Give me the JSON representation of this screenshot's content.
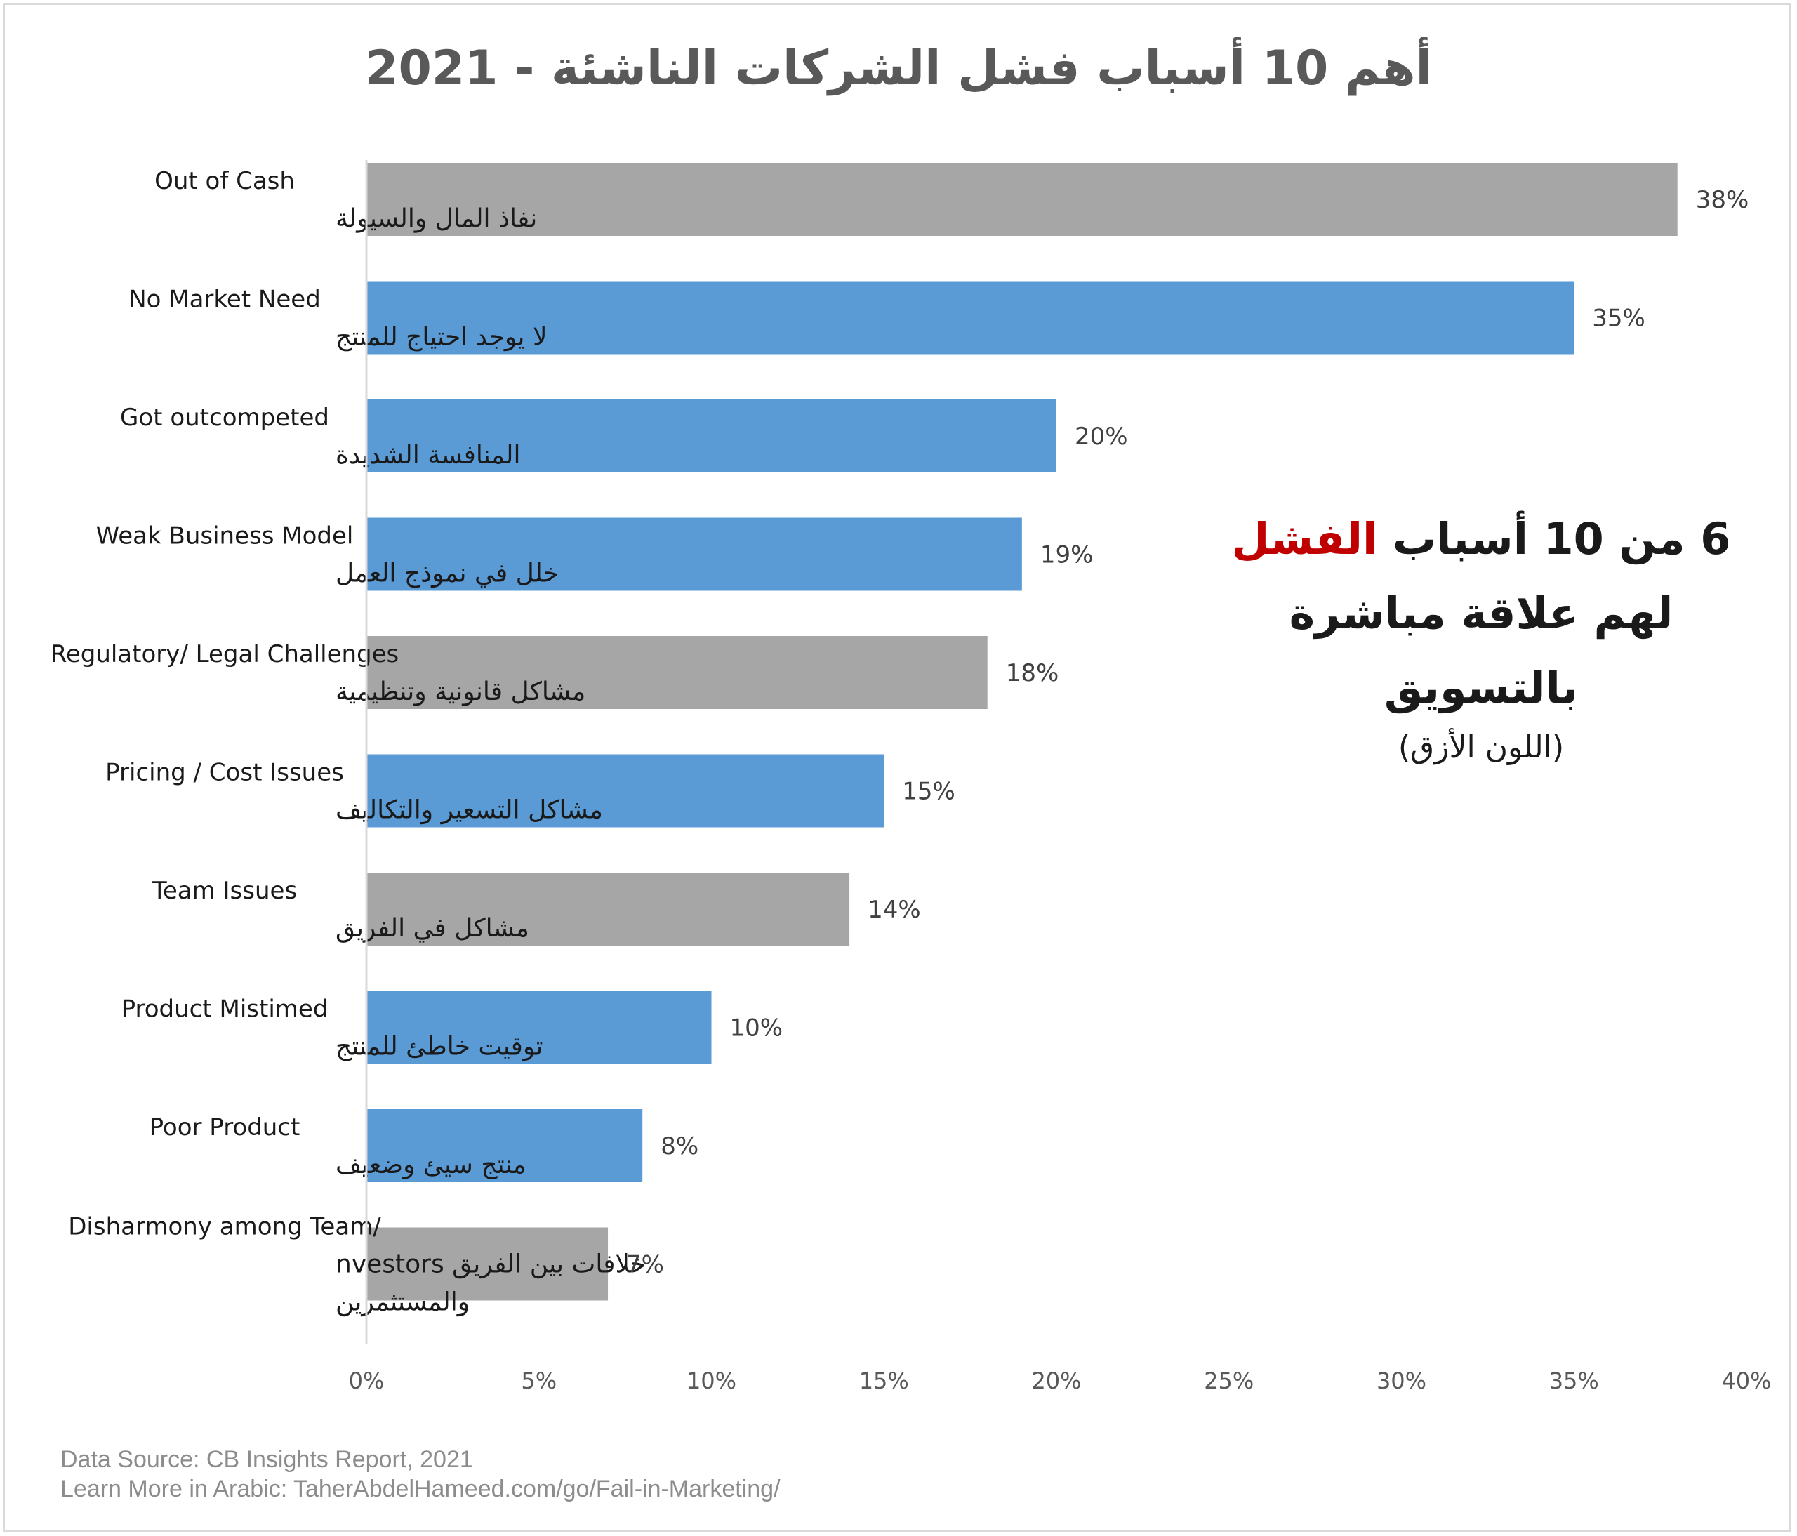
{
  "title": "أهم 10 أسباب فشل الشركات الناشئة - 2021",
  "annotation": {
    "line1_prefix": "6 من 10 أسباب ",
    "line1_highlight": "الفشل",
    "line2": "لهم علاقة مباشرة",
    "line3": "بالتسويق",
    "line4": "(اللون الأزق)"
  },
  "colors": {
    "marketing": "#5b9bd5",
    "other": "#a6a6a6",
    "highlight": "#c00000",
    "axis": "#d9d9d9"
  },
  "footer": {
    "source": "Data Source: CB Insights Report, 2021",
    "learn_more": "Learn More in Arabic: TaherAbdelHameed.com/go/Fail-in-Marketing/"
  },
  "chart_data": {
    "type": "bar",
    "orientation": "horizontal",
    "title": "أهم 10 أسباب فشل الشركات الناشئة - 2021",
    "categories": [
      {
        "en": "Out of Cash",
        "ar": [
          "نفاذ المال والسيولة"
        ],
        "value": 38,
        "label": "38%",
        "marketing": false
      },
      {
        "en": "No Market Need",
        "ar": [
          "لا يوجد احتياج للمنتج"
        ],
        "value": 35,
        "label": "35%",
        "marketing": true
      },
      {
        "en": "Got outcompeted",
        "ar": [
          "المنافسة الشديدة"
        ],
        "value": 20,
        "label": "20%",
        "marketing": true
      },
      {
        "en": "Weak Business Model",
        "ar": [
          "خلل في نموذج العمل"
        ],
        "value": 19,
        "label": "19%",
        "marketing": true
      },
      {
        "en": "Regulatory/ Legal Challenges",
        "ar": [
          "مشاكل قانونية وتنظيمية"
        ],
        "value": 18,
        "label": "18%",
        "marketing": false
      },
      {
        "en": "Pricing / Cost Issues",
        "ar": [
          "مشاكل التسعير والتكاليف"
        ],
        "value": 15,
        "label": "15%",
        "marketing": true
      },
      {
        "en": "Team Issues",
        "ar": [
          "مشاكل في الفريق"
        ],
        "value": 14,
        "label": "14%",
        "marketing": false
      },
      {
        "en": "Product Mistimed",
        "ar": [
          "توقيت خاطئ للمنتج"
        ],
        "value": 10,
        "label": "10%",
        "marketing": true
      },
      {
        "en": "Poor Product",
        "ar": [
          "منتج سيئ وضعيف"
        ],
        "value": 8,
        "label": "8%",
        "marketing": true
      },
      {
        "en": "Disharmony among Team/",
        "ar": [
          "nvestors  خلافات بين الفريق",
          "والمستثمرين"
        ],
        "value": 7,
        "label": "7%",
        "marketing": false
      }
    ],
    "x_ticks": [
      "0%",
      "5%",
      "10%",
      "15%",
      "20%",
      "25%",
      "30%",
      "35%",
      "40%"
    ],
    "xlim": [
      0,
      40
    ],
    "grid": false,
    "legend": "none"
  }
}
